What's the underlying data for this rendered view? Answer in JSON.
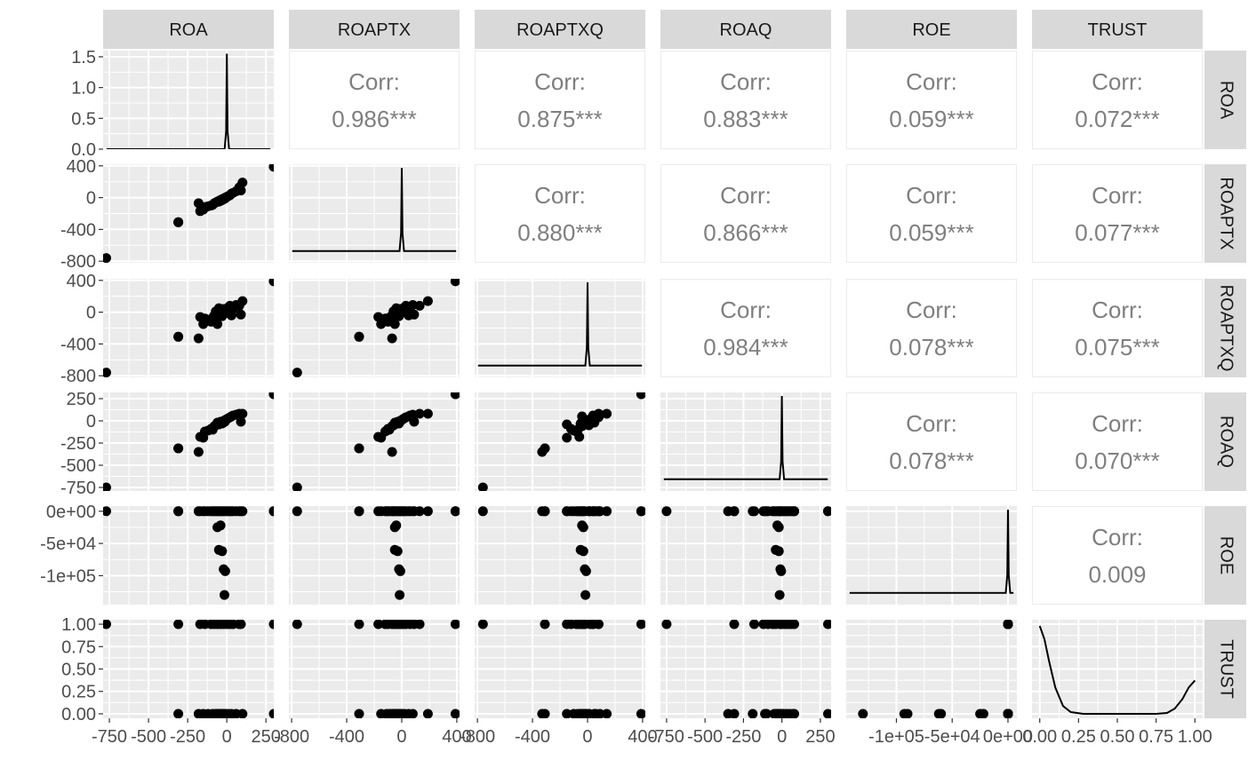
{
  "chart_data": {
    "type": "scatter",
    "variables": [
      "ROA",
      "ROAPTX",
      "ROAPTXQ",
      "ROAQ",
      "ROE",
      "TRUST"
    ],
    "corr_label": "Corr:",
    "correlations": [
      {
        "row": "ROA",
        "col": "ROAPTX",
        "value": "0.986***"
      },
      {
        "row": "ROA",
        "col": "ROAPTXQ",
        "value": "0.875***"
      },
      {
        "row": "ROA",
        "col": "ROAQ",
        "value": "0.883***"
      },
      {
        "row": "ROA",
        "col": "ROE",
        "value": "0.059***"
      },
      {
        "row": "ROA",
        "col": "TRUST",
        "value": "0.072***"
      },
      {
        "row": "ROAPTX",
        "col": "ROAPTXQ",
        "value": "0.880***"
      },
      {
        "row": "ROAPTX",
        "col": "ROAQ",
        "value": "0.866***"
      },
      {
        "row": "ROAPTX",
        "col": "ROE",
        "value": "0.059***"
      },
      {
        "row": "ROAPTX",
        "col": "TRUST",
        "value": "0.077***"
      },
      {
        "row": "ROAPTXQ",
        "col": "ROAQ",
        "value": "0.984***"
      },
      {
        "row": "ROAPTXQ",
        "col": "ROE",
        "value": "0.078***"
      },
      {
        "row": "ROAPTXQ",
        "col": "TRUST",
        "value": "0.075***"
      },
      {
        "row": "ROAQ",
        "col": "ROE",
        "value": "0.078***"
      },
      {
        "row": "ROAQ",
        "col": "TRUST",
        "value": "0.070***"
      },
      {
        "row": "ROE",
        "col": "TRUST",
        "value": "0.009"
      }
    ],
    "axes": {
      "ROA": {
        "range": [
          -790,
          300
        ],
        "ticks": [
          -750,
          -500,
          -250,
          0,
          250
        ],
        "tick_labels": [
          "-750",
          "-500",
          "-250",
          "0",
          "250"
        ]
      },
      "ROAPTX": {
        "range": [
          -820,
          420
        ],
        "ticks": [
          -800,
          -400,
          0,
          400
        ],
        "tick_labels": [
          "-800",
          "-400",
          "0",
          "400"
        ]
      },
      "ROAPTXQ": {
        "range": [
          -820,
          420
        ],
        "ticks": [
          -800,
          -400,
          0,
          400
        ],
        "tick_labels": [
          "-800",
          "-400",
          "0",
          "400"
        ]
      },
      "ROAQ": {
        "range": [
          -790,
          320
        ],
        "ticks": [
          -750,
          -500,
          -250,
          0,
          250
        ],
        "tick_labels": [
          "-750",
          "-500",
          "-250",
          "0",
          "250"
        ]
      },
      "ROE": {
        "range": [
          -145000,
          8000
        ],
        "ticks": [
          -100000,
          -50000,
          0
        ],
        "tick_labels": [
          "-1e+05",
          "-5e+04",
          "0e+00"
        ]
      },
      "TRUST": {
        "range": [
          -0.05,
          1.05
        ],
        "ticks": [
          0,
          0.25,
          0.5,
          0.75,
          1
        ],
        "tick_labels": [
          "0.00",
          "0.25",
          "0.50",
          "0.75",
          "1.00"
        ]
      }
    },
    "diagonal_density": {
      "ROA": {
        "ylim": [
          0,
          1.6
        ],
        "y_ticks": [
          0,
          0.5,
          1.0,
          1.5
        ],
        "y_tick_labels": [
          "0.0",
          "0.5",
          "1.0",
          "1.5"
        ],
        "peak_at": 0,
        "peak_height": 1.55
      },
      "ROAPTX": {
        "peak_at": 0
      },
      "ROAPTXQ": {
        "peak_at": 0
      },
      "ROAQ": {
        "peak_at": 0
      },
      "ROE": {
        "peak_at": 0
      },
      "TRUST": {
        "curve": [
          [
            0,
            1.0
          ],
          [
            0.03,
            0.85
          ],
          [
            0.06,
            0.6
          ],
          [
            0.1,
            0.3
          ],
          [
            0.15,
            0.09
          ],
          [
            0.2,
            0.02
          ],
          [
            0.28,
            0.0
          ],
          [
            0.5,
            0.0
          ],
          [
            0.75,
            0.0
          ],
          [
            0.82,
            0.01
          ],
          [
            0.87,
            0.06
          ],
          [
            0.92,
            0.17
          ],
          [
            0.96,
            0.3
          ],
          [
            1.0,
            0.38
          ]
        ]
      }
    },
    "observations": [
      [
        -770,
        -760,
        -760,
        -750,
        0,
        1
      ],
      [
        300,
        390,
        390,
        300,
        0,
        1
      ],
      [
        300,
        390,
        390,
        300,
        0,
        0
      ],
      [
        -310,
        -310,
        -310,
        -310,
        0,
        0
      ],
      [
        -310,
        -310,
        -310,
        -310,
        0,
        1
      ],
      [
        -180,
        -70,
        -330,
        -350,
        0,
        0
      ],
      [
        -170,
        -170,
        -60,
        -180,
        0,
        1
      ],
      [
        -150,
        -150,
        -150,
        -190,
        0,
        0
      ],
      [
        -140,
        -120,
        -80,
        -120,
        0,
        1
      ],
      [
        -120,
        -110,
        -100,
        -110,
        0,
        0
      ],
      [
        -100,
        -100,
        -120,
        -90,
        0,
        1
      ],
      [
        -90,
        -90,
        -70,
        -100,
        0,
        0
      ],
      [
        -80,
        -70,
        -40,
        -60,
        0,
        1
      ],
      [
        -70,
        -60,
        10,
        -50,
        0,
        0
      ],
      [
        -60,
        -50,
        -150,
        -40,
        0,
        1
      ],
      [
        -50,
        -40,
        50,
        -20,
        0,
        0
      ],
      [
        -40,
        -30,
        -20,
        -10,
        0,
        1
      ],
      [
        -30,
        -20,
        -50,
        -30,
        0,
        0
      ],
      [
        -20,
        -10,
        40,
        0,
        0,
        1
      ],
      [
        -10,
        0,
        10,
        10,
        0,
        0
      ],
      [
        0,
        10,
        20,
        20,
        0,
        1
      ],
      [
        10,
        20,
        60,
        30,
        0,
        0
      ],
      [
        20,
        30,
        80,
        40,
        0,
        1
      ],
      [
        30,
        50,
        -40,
        50,
        0,
        0
      ],
      [
        40,
        60,
        40,
        60,
        0,
        1
      ],
      [
        60,
        80,
        90,
        70,
        0,
        0
      ],
      [
        80,
        130,
        80,
        80,
        0,
        1
      ],
      [
        100,
        190,
        140,
        80,
        0,
        0
      ],
      [
        90,
        90,
        -30,
        -10,
        0,
        1
      ],
      [
        -60,
        -50,
        -30,
        -20,
        -25000,
        0
      ],
      [
        -40,
        -40,
        -40,
        -30,
        -22000,
        0
      ],
      [
        -50,
        -50,
        -50,
        -40,
        -60000,
        0
      ],
      [
        -30,
        -30,
        -30,
        -20,
        -62000,
        0
      ],
      [
        -20,
        -20,
        -20,
        -10,
        -90000,
        0
      ],
      [
        -10,
        -10,
        -10,
        -5,
        -93000,
        0
      ],
      [
        -15,
        -15,
        -15,
        -15,
        -130000,
        0
      ]
    ],
    "grid": true
  }
}
